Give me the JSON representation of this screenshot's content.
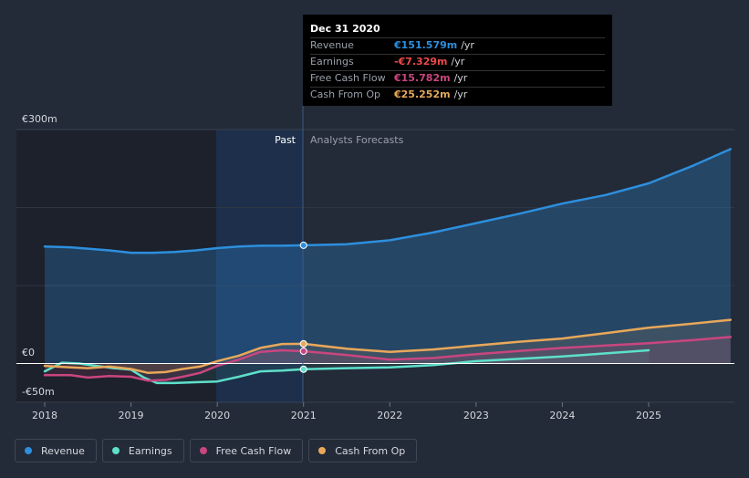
{
  "colors": {
    "revenue": "#2d8fdd",
    "earnings": "#5ee0cb",
    "free_cash_flow": "#c9467f",
    "cash_from_op": "#e8a85a"
  },
  "tooltip": {
    "date": "Dec 31 2020",
    "rows": [
      {
        "label": "Revenue",
        "value": "€151.579m",
        "unit": "/yr",
        "color": "#2d8fdd"
      },
      {
        "label": "Earnings",
        "value": "-€7.329m",
        "unit": "/yr",
        "color": "#ee4a4a"
      },
      {
        "label": "Free Cash Flow",
        "value": "€15.782m",
        "unit": "/yr",
        "color": "#c9467f"
      },
      {
        "label": "Cash From Op",
        "value": "€25.252m",
        "unit": "/yr",
        "color": "#e8a85a"
      }
    ]
  },
  "legend": [
    {
      "label": "Revenue",
      "color": "#2d8fdd"
    },
    {
      "label": "Earnings",
      "color": "#5ee0cb"
    },
    {
      "label": "Free Cash Flow",
      "color": "#c9467f"
    },
    {
      "label": "Cash From Op",
      "color": "#e8a85a"
    }
  ],
  "chart_data": {
    "type": "line",
    "title": "",
    "y_unit": "€m",
    "ylim": [
      -50,
      300
    ],
    "y_ticks": [
      {
        "value": 300,
        "label": "€300m"
      },
      {
        "value": 0,
        "label": "€0"
      },
      {
        "value": -50,
        "label": "-€50m"
      }
    ],
    "xlim": [
      2018,
      2026
    ],
    "x_ticks": [
      "2018",
      "2019",
      "2020",
      "2021",
      "2022",
      "2023",
      "2024",
      "2025"
    ],
    "divider_x": 2021,
    "past_label": "Past",
    "forecast_label": "Analysts Forecasts",
    "series": [
      {
        "name": "Revenue",
        "key": "revenue",
        "x": [
          2018,
          2018.3,
          2018.75,
          2019,
          2019.25,
          2019.5,
          2019.75,
          2020,
          2020.25,
          2020.5,
          2020.75,
          2021,
          2021.5,
          2022,
          2022.5,
          2023,
          2023.5,
          2024,
          2024.5,
          2025,
          2025.5,
          2025.95
        ],
        "values": [
          150,
          149,
          145,
          142,
          142,
          143,
          145,
          148,
          150,
          151,
          151,
          151.6,
          153,
          158,
          168,
          180,
          192,
          205,
          216,
          231,
          253,
          275
        ]
      },
      {
        "name": "Earnings",
        "key": "earnings",
        "x": [
          2018,
          2018.2,
          2018.4,
          2018.6,
          2018.8,
          2019,
          2019.15,
          2019.3,
          2019.5,
          2019.75,
          2020,
          2020.25,
          2020.5,
          2020.75,
          2021,
          2021.5,
          2022,
          2022.5,
          2023,
          2023.5,
          2024,
          2024.5,
          2025
        ],
        "values": [
          -10,
          1,
          0,
          -3,
          -6,
          -8,
          -18,
          -25,
          -25,
          -24,
          -23,
          -17,
          -10,
          -9,
          -7.3,
          -6,
          -5,
          -2,
          3,
          6,
          9,
          13,
          17
        ]
      },
      {
        "name": "Free Cash Flow",
        "key": "free_cash_flow",
        "x": [
          2018,
          2018.3,
          2018.5,
          2018.75,
          2019,
          2019.2,
          2019.4,
          2019.6,
          2019.8,
          2020,
          2020.25,
          2020.5,
          2020.75,
          2021,
          2021.5,
          2022,
          2022.5,
          2023,
          2023.5,
          2024,
          2024.5,
          2025,
          2025.5,
          2025.95
        ],
        "values": [
          -15,
          -15,
          -18,
          -16,
          -17,
          -22,
          -21,
          -17,
          -12,
          -3,
          5,
          15,
          17,
          15.8,
          11,
          5,
          7,
          12,
          16,
          20,
          23,
          26,
          30,
          34
        ]
      },
      {
        "name": "Cash From Op",
        "key": "cash_from_op",
        "x": [
          2018,
          2018.3,
          2018.5,
          2018.75,
          2019,
          2019.2,
          2019.4,
          2019.6,
          2019.8,
          2020,
          2020.25,
          2020.5,
          2020.75,
          2021,
          2021.5,
          2022,
          2022.5,
          2023,
          2023.5,
          2024,
          2024.5,
          2025,
          2025.5,
          2025.95
        ],
        "values": [
          -3,
          -5,
          -6,
          -4,
          -7,
          -12,
          -11,
          -7,
          -4,
          3,
          10,
          20,
          25,
          25.3,
          19,
          15,
          18,
          23,
          28,
          32,
          39,
          46,
          51,
          56
        ]
      }
    ]
  }
}
